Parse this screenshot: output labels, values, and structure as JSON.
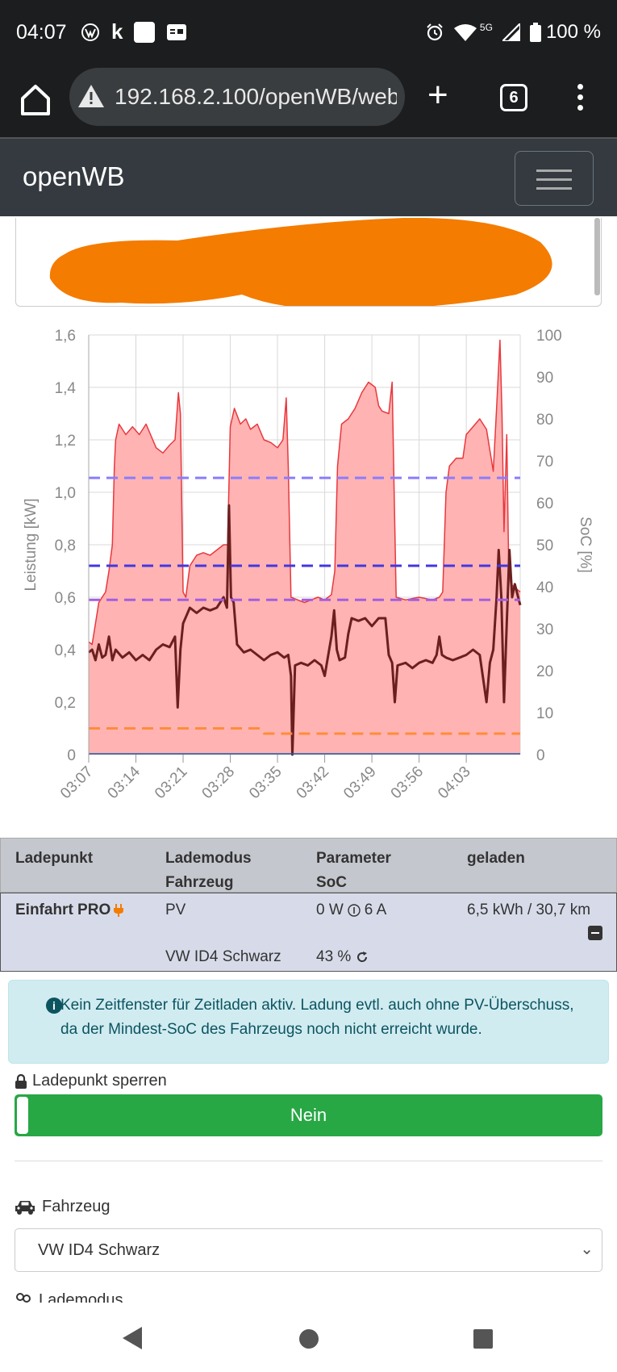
{
  "status_bar": {
    "time": "04:07",
    "battery": "100 %",
    "network": "5G",
    "left_icons": [
      "vw-logo-icon",
      "k-app-icon",
      "square-app-icon",
      "gmx-icon"
    ],
    "right_icons": [
      "alarm-icon",
      "wifi-icon",
      "signal-icon",
      "battery-icon"
    ]
  },
  "browser": {
    "url": "192.168.2.100/openWB/web/",
    "tab_count": "6"
  },
  "navbar": {
    "brand": "openWB"
  },
  "chart_data": {
    "type": "line",
    "y_left_label": "Leistung [kW]",
    "y_right_label": "SoC [%]",
    "y_left_ticks": [
      "0",
      "0,2",
      "0,4",
      "0,6",
      "0,8",
      "1,0",
      "1,2",
      "1,4",
      "1,6"
    ],
    "y_right_ticks": [
      "0",
      "10",
      "20",
      "30",
      "40",
      "50",
      "60",
      "70",
      "80",
      "90",
      "100"
    ],
    "ylim_left": [
      0,
      1.6
    ],
    "ylim_right": [
      0,
      100
    ],
    "x_ticks": [
      "03:07",
      "03:14",
      "03:21",
      "03:28",
      "03:35",
      "03:42",
      "03:49",
      "03:56",
      "04:03"
    ],
    "x_range_minutes": [
      0,
      64
    ],
    "grid": true,
    "series": [
      {
        "color": "#e8383d",
        "fill": "#ffb3b3",
        "axis": "left",
        "points": [
          [
            0,
            0.43
          ],
          [
            0.5,
            0.42
          ],
          [
            1,
            0.5
          ],
          [
            1.5,
            0.58
          ],
          [
            2.5,
            0.62
          ],
          [
            3,
            0.7
          ],
          [
            3.5,
            0.8
          ],
          [
            3.8,
            1.1
          ],
          [
            4,
            1.2
          ],
          [
            4.5,
            1.26
          ],
          [
            5.5,
            1.22
          ],
          [
            6.5,
            1.25
          ],
          [
            7.5,
            1.22
          ],
          [
            8.5,
            1.26
          ],
          [
            9.5,
            1.2
          ],
          [
            10,
            1.17
          ],
          [
            11,
            1.15
          ],
          [
            12,
            1.18
          ],
          [
            12.8,
            1.2
          ],
          [
            13.3,
            1.38
          ],
          [
            13.6,
            1.3
          ],
          [
            14,
            0.62
          ],
          [
            14.4,
            0.6
          ],
          [
            15,
            0.72
          ],
          [
            16,
            0.76
          ],
          [
            17,
            0.77
          ],
          [
            18,
            0.76
          ],
          [
            19,
            0.78
          ],
          [
            20,
            0.8
          ],
          [
            20.6,
            0.8
          ],
          [
            21,
            1.25
          ],
          [
            21.6,
            1.32
          ],
          [
            22.5,
            1.26
          ],
          [
            23.3,
            1.28
          ],
          [
            24,
            1.24
          ],
          [
            25,
            1.26
          ],
          [
            26,
            1.2
          ],
          [
            27,
            1.19
          ],
          [
            28,
            1.17
          ],
          [
            28.8,
            1.2
          ],
          [
            29.3,
            1.36
          ],
          [
            29.6,
            1.1
          ],
          [
            30,
            0.6
          ],
          [
            31,
            0.59
          ],
          [
            32,
            0.58
          ],
          [
            33,
            0.59
          ],
          [
            34,
            0.6
          ],
          [
            35,
            0.59
          ],
          [
            36,
            0.61
          ],
          [
            36.5,
            0.7
          ],
          [
            36.9,
            1.1
          ],
          [
            37.5,
            1.26
          ],
          [
            38.5,
            1.28
          ],
          [
            39.5,
            1.32
          ],
          [
            40.5,
            1.38
          ],
          [
            41.5,
            1.42
          ],
          [
            42.5,
            1.4
          ],
          [
            43,
            1.33
          ],
          [
            43.5,
            1.31
          ],
          [
            44.5,
            1.3
          ],
          [
            45,
            1.42
          ],
          [
            45.3,
            1.0
          ],
          [
            45.6,
            0.6
          ],
          [
            47,
            0.59
          ],
          [
            49,
            0.6
          ],
          [
            51,
            0.59
          ],
          [
            52,
            0.6
          ],
          [
            52.5,
            0.62
          ],
          [
            53,
            1.0
          ],
          [
            53.5,
            1.1
          ],
          [
            54.5,
            1.13
          ],
          [
            55.5,
            1.13
          ],
          [
            56,
            1.22
          ],
          [
            57,
            1.25
          ],
          [
            58,
            1.28
          ],
          [
            59,
            1.24
          ],
          [
            60,
            1.08
          ],
          [
            60.5,
            1.32
          ],
          [
            61,
            1.58
          ],
          [
            61.3,
            1.3
          ],
          [
            61.6,
            0.85
          ],
          [
            62,
            1.22
          ],
          [
            62.3,
            0.7
          ],
          [
            62.6,
            0.65
          ],
          [
            64,
            0.62
          ]
        ]
      },
      {
        "color": "#6b1f1f",
        "axis": "left",
        "points": [
          [
            0,
            0.39
          ],
          [
            0.5,
            0.4
          ],
          [
            1,
            0.36
          ],
          [
            1.5,
            0.42
          ],
          [
            2,
            0.37
          ],
          [
            2.5,
            0.38
          ],
          [
            3,
            0.45
          ],
          [
            3.5,
            0.36
          ],
          [
            4,
            0.4
          ],
          [
            5,
            0.37
          ],
          [
            6,
            0.39
          ],
          [
            7,
            0.36
          ],
          [
            8,
            0.38
          ],
          [
            9,
            0.36
          ],
          [
            10,
            0.4
          ],
          [
            11,
            0.42
          ],
          [
            12,
            0.41
          ],
          [
            12.8,
            0.45
          ],
          [
            13.2,
            0.18
          ],
          [
            13.6,
            0.4
          ],
          [
            14,
            0.5
          ],
          [
            14.5,
            0.53
          ],
          [
            15,
            0.56
          ],
          [
            16,
            0.54
          ],
          [
            17,
            0.56
          ],
          [
            18,
            0.55
          ],
          [
            19,
            0.56
          ],
          [
            20,
            0.6
          ],
          [
            20.5,
            0.56
          ],
          [
            20.8,
            0.95
          ],
          [
            21.1,
            0.6
          ],
          [
            21.5,
            0.58
          ],
          [
            22,
            0.42
          ],
          [
            23,
            0.39
          ],
          [
            24,
            0.4
          ],
          [
            25,
            0.38
          ],
          [
            26,
            0.36
          ],
          [
            27,
            0.38
          ],
          [
            28,
            0.39
          ],
          [
            29,
            0.37
          ],
          [
            29.6,
            0.38
          ],
          [
            30,
            0.3
          ],
          [
            30.2,
            0.0
          ],
          [
            30.6,
            0.34
          ],
          [
            31.5,
            0.35
          ],
          [
            32.5,
            0.34
          ],
          [
            33.5,
            0.36
          ],
          [
            34.5,
            0.34
          ],
          [
            35,
            0.3
          ],
          [
            35.4,
            0.36
          ],
          [
            36,
            0.45
          ],
          [
            36.4,
            0.55
          ],
          [
            36.8,
            0.4
          ],
          [
            37.2,
            0.36
          ],
          [
            38,
            0.37
          ],
          [
            38.5,
            0.46
          ],
          [
            39,
            0.52
          ],
          [
            40,
            0.51
          ],
          [
            41,
            0.52
          ],
          [
            42,
            0.49
          ],
          [
            43,
            0.52
          ],
          [
            44,
            0.52
          ],
          [
            44.5,
            0.38
          ],
          [
            45,
            0.35
          ],
          [
            45.4,
            0.2
          ],
          [
            45.8,
            0.34
          ],
          [
            47,
            0.35
          ],
          [
            48,
            0.33
          ],
          [
            49,
            0.35
          ],
          [
            50,
            0.36
          ],
          [
            51,
            0.35
          ],
          [
            51.6,
            0.38
          ],
          [
            52,
            0.45
          ],
          [
            52.4,
            0.38
          ],
          [
            53,
            0.37
          ],
          [
            54,
            0.36
          ],
          [
            55,
            0.37
          ],
          [
            56,
            0.38
          ],
          [
            57,
            0.4
          ],
          [
            58,
            0.38
          ],
          [
            59,
            0.2
          ],
          [
            59.5,
            0.35
          ],
          [
            60,
            0.4
          ],
          [
            60.5,
            0.6
          ],
          [
            60.8,
            0.78
          ],
          [
            61.2,
            0.6
          ],
          [
            61.6,
            0.2
          ],
          [
            62,
            0.5
          ],
          [
            62.4,
            0.78
          ],
          [
            62.8,
            0.6
          ],
          [
            63.2,
            0.65
          ],
          [
            64,
            0.57
          ]
        ]
      },
      {
        "color": "#ff8c3a",
        "axis": "left",
        "dash": true,
        "points": [
          [
            0,
            0.1
          ],
          [
            25.5,
            0.1
          ],
          [
            26,
            0.08
          ],
          [
            64,
            0.08
          ]
        ]
      },
      {
        "color": "#8a7cff",
        "axis": "left",
        "dash": true,
        "points": [
          [
            0,
            1.055
          ],
          [
            64,
            1.055
          ]
        ]
      },
      {
        "color": "#4338e0",
        "axis": "left",
        "dash": true,
        "points": [
          [
            0,
            0.72
          ],
          [
            64,
            0.72
          ]
        ]
      },
      {
        "color": "#a25ee0",
        "axis": "left",
        "dash": true,
        "points": [
          [
            0,
            0.59
          ],
          [
            64,
            0.59
          ]
        ]
      },
      {
        "color": "#1d5ba8",
        "axis": "left",
        "points": [
          [
            0,
            0.003
          ],
          [
            64,
            0.003
          ]
        ]
      }
    ]
  },
  "table": {
    "headers": {
      "col1": "Ladepunkt",
      "col2a": "Lademodus",
      "col2b": "Fahrzeug",
      "col3a": "Parameter",
      "col3b": "SoC",
      "col4": "geladen"
    },
    "row": {
      "ladepunkt": "Einfahrt PRO",
      "lademodus": "PV",
      "parameter": "0 W",
      "parameter2": "6 A",
      "geladen": "6,5 kWh / 30,7 km",
      "fahrzeug": "VW ID4 Schwarz",
      "soc": "43 %"
    }
  },
  "alert": {
    "text": "Kein Zeitfenster für Zeitladen aktiv. Ladung evtl. auch ohne PV-Überschuss, da der Mindest-SoC des Fahrzeugs noch nicht erreicht wurde."
  },
  "lock": {
    "label": "Ladepunkt sperren",
    "button": "Nein"
  },
  "vehicle": {
    "label": "Fahrzeug",
    "selected": "VW ID4 Schwarz"
  },
  "mode": {
    "label": "Lademodus"
  }
}
